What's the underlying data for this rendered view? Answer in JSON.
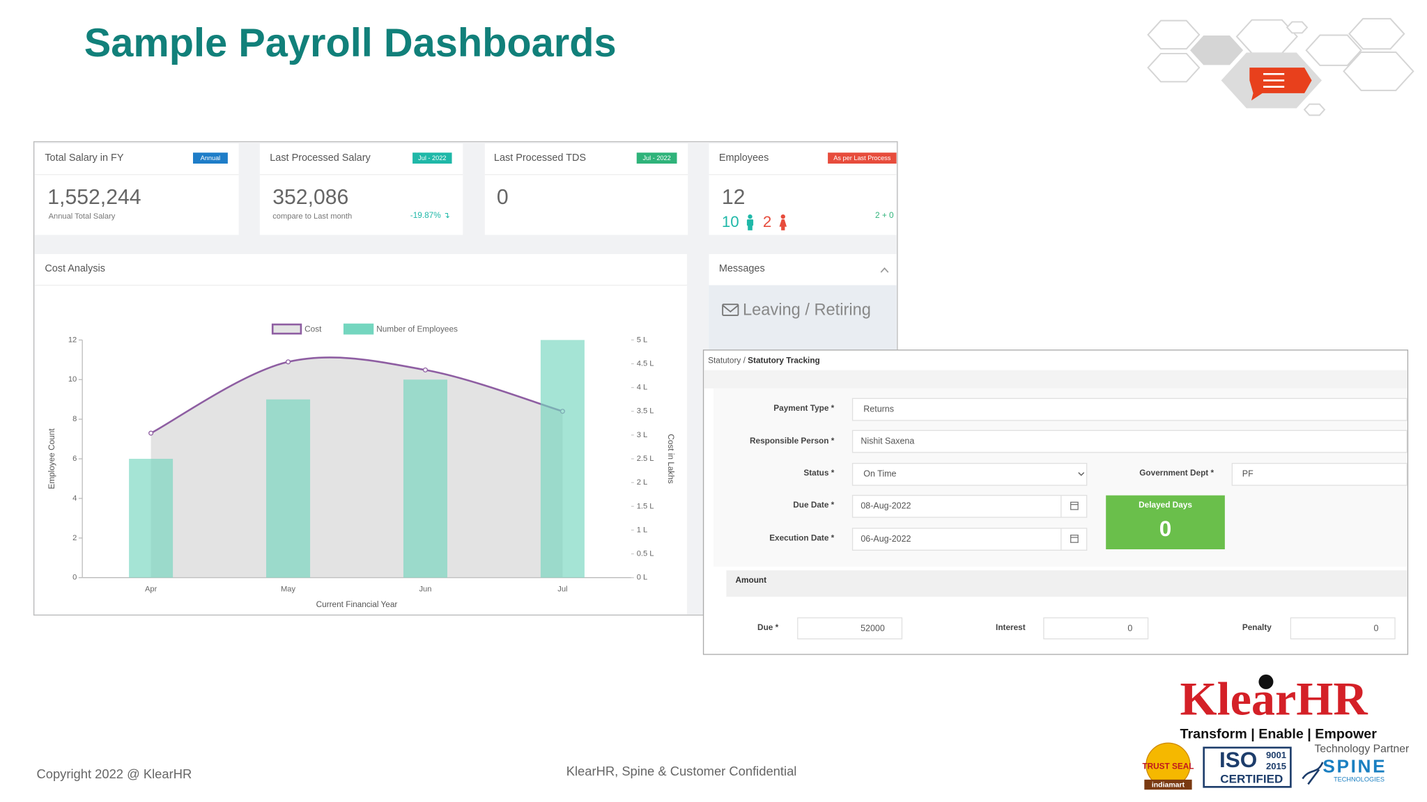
{
  "header": {
    "title": "Sample Payroll Dashboards"
  },
  "cards": [
    {
      "title": "Total Salary in FY",
      "badge": "Annual",
      "value": "1,552,244",
      "caption": "Annual Total Salary"
    },
    {
      "title": "Last Processed Salary",
      "badge": "Jul - 2022",
      "value": "352,086",
      "caption": "compare to Last month",
      "change": "-19.87% ↴"
    },
    {
      "title": "Last Processed TDS",
      "badge": "Jul - 2022",
      "value": "0"
    },
    {
      "title": "Employees",
      "badge": "As per Last Process",
      "value": "12",
      "male": "10",
      "female": "2",
      "extra": "2 + 0"
    }
  ],
  "cost_panel": {
    "title": "Cost Analysis"
  },
  "chart_data": {
    "type": "combo",
    "categories": [
      "Apr",
      "May",
      "Jun",
      "Jul"
    ],
    "series": [
      {
        "name": "Cost",
        "type": "line",
        "axis": "y2",
        "color": "#8e5ea2",
        "values": [
          3.04,
          4.54,
          4.37,
          3.5
        ]
      },
      {
        "name": "Number of Employees",
        "type": "bar",
        "color": "#74d6bf",
        "values": [
          6,
          9,
          10,
          12
        ]
      }
    ],
    "ylim": [
      0,
      12
    ],
    "yticks": [
      0,
      2,
      4,
      6,
      8,
      10,
      12
    ],
    "y2lim": [
      0,
      5
    ],
    "y2ticks": [
      {
        "value": 0,
        "label": "0 L"
      },
      {
        "value": 0.5,
        "label": "0.5 L"
      },
      {
        "value": 1,
        "label": "1 L"
      },
      {
        "value": 1.5,
        "label": "1.5 L"
      },
      {
        "value": 2,
        "label": "2 L"
      },
      {
        "value": 2.5,
        "label": "2.5 L"
      },
      {
        "value": 3,
        "label": "3 L"
      },
      {
        "value": 3.5,
        "label": "3.5 L"
      },
      {
        "value": 4,
        "label": "4 L"
      },
      {
        "value": 4.5,
        "label": "4.5 L"
      },
      {
        "value": 5,
        "label": "5 L"
      }
    ],
    "xlabel": "Current Financial Year",
    "ylabel": "Employee Count",
    "y2label": "Cost in Lakhs",
    "grid": false,
    "legend": "top"
  },
  "messages": {
    "title": "Messages",
    "item": "Leaving / Retiring"
  },
  "statutory": {
    "breadcrumb": "Statutory / ",
    "page": "Statutory Tracking",
    "fields": [
      {
        "label": "Payment Type *",
        "value": "Returns"
      },
      {
        "label": "Responsible Person *",
        "value": "Nishit Saxena"
      },
      {
        "label": "Status *",
        "value": "On Time"
      },
      {
        "label": "Due Date *",
        "value": "08-Aug-2022"
      },
      {
        "label": "Execution Date *",
        "value": "06-Aug-2022"
      },
      {
        "label": "Government Dept *",
        "value": "PF"
      }
    ],
    "delayed": {
      "label": "Delayed Days",
      "value": "0"
    },
    "amount": {
      "title": "Amount",
      "fields": [
        {
          "label": "Due *",
          "value": "52000"
        },
        {
          "label": "Interest",
          "value": "0"
        },
        {
          "label": "Penalty",
          "value": "0"
        }
      ]
    }
  },
  "footer": {
    "copyright": "Copyright 2022 @ KlearHR",
    "confidential": "KlearHR, Spine & Customer Confidential"
  },
  "branding": {
    "logo": "KlearHR",
    "tagline": "Transform | Enable | Empower",
    "partner": "Technology Partner",
    "seal": "TRUST SEAL",
    "seal_source": "indiamart",
    "iso": "ISO",
    "iso_number": "9001",
    "iso_year": "2015",
    "iso_text": "CERTIFIED",
    "spine": "SPINE",
    "spine_sub": "TECHNOLOGIES"
  }
}
